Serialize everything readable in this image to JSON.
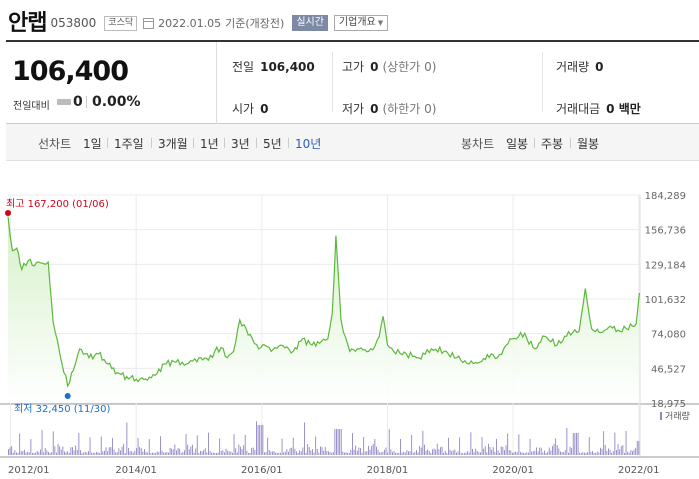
{
  "header": {
    "company_name": "안랩",
    "stock_code": "053800",
    "market": "코스닥",
    "date": "2022.01.05",
    "date_suffix": "기준(개장전)",
    "realtime_label": "실시간",
    "company_info_label": "기업개요"
  },
  "quote": {
    "price": "106,400",
    "diff_label": "전일대비",
    "diff_value": "0",
    "diff_percent": "0.00%",
    "prev_close_label": "전일",
    "prev_close": "106,400",
    "high_label": "고가",
    "high": "0",
    "high_limit": "(상한가 0)",
    "volume_label": "거래량",
    "volume": "0",
    "open_label": "시가",
    "open": "0",
    "low_label": "저가",
    "low": "0",
    "low_limit": "(하한가 0)",
    "amount_label": "거래대금",
    "amount": "0 백만"
  },
  "periods": {
    "line_chart_label": "선차트",
    "line_options": [
      "1일",
      "1주일",
      "3개월",
      "1년",
      "3년",
      "5년",
      "10년"
    ],
    "active": "10년",
    "candle_chart_label": "봉차트",
    "candle_options": [
      "일봉",
      "주봉",
      "월봉"
    ]
  },
  "colors": {
    "line": "#5cb83a",
    "area_top": "#d2f0c6",
    "volume": "#9384c5",
    "high_marker": "#d0021b",
    "low_marker": "#1a6fcc",
    "active_period": "#2c5db8"
  },
  "chart_data": {
    "type": "area",
    "y_ticks": [
      "184,289",
      "156,736",
      "129,184",
      "101,632",
      "74,080",
      "46,527",
      "18,975"
    ],
    "x_ticks": [
      "2012/01",
      "2014/01",
      "2016/01",
      "2018/01",
      "2020/01",
      "2022/01"
    ],
    "ylim": [
      18975,
      184289
    ],
    "xlim": [
      2011.96,
      2022.02
    ],
    "high_annotation": "최고 167,200 (01/06)",
    "low_annotation": "최저 32,450 (11/30)",
    "volume_legend": "거래량",
    "series": [
      {
        "x": [
          2011.96,
          2012.03,
          2012.1,
          2012.18,
          2012.28,
          2012.38,
          2012.45,
          2012.52,
          2012.6,
          2012.68,
          2012.75,
          2012.82,
          2012.91,
          2013.0,
          2013.1,
          2013.25,
          2013.4,
          2013.55,
          2013.7,
          2013.85,
          2014.0,
          2014.15,
          2014.3,
          2014.45,
          2014.6,
          2014.8,
          2015.0,
          2015.15,
          2015.25,
          2015.35,
          2015.45,
          2015.55,
          2015.65,
          2015.75,
          2015.85,
          2015.95,
          2016.05,
          2016.15,
          2016.3,
          2016.5,
          2016.65,
          2016.8,
          2016.95,
          2017.05,
          2017.12,
          2017.18,
          2017.22,
          2017.26,
          2017.3,
          2017.4,
          2017.55,
          2017.7,
          2017.8,
          2017.87,
          2017.93,
          2018.0,
          2018.1,
          2018.3,
          2018.5,
          2018.7,
          2018.9,
          2019.1,
          2019.3,
          2019.5,
          2019.65,
          2019.75,
          2019.85,
          2019.95,
          2020.05,
          2020.12,
          2020.22,
          2020.35,
          2020.5,
          2020.7,
          2020.85,
          2020.95,
          2021.05,
          2021.15,
          2021.25,
          2021.4,
          2021.55,
          2021.7,
          2021.8,
          2021.9,
          2021.96,
          2022.01
        ],
        "values": [
          167200,
          140000,
          142000,
          125000,
          132000,
          128000,
          131000,
          130000,
          131000,
          83000,
          68000,
          50000,
          32450,
          45000,
          62000,
          55000,
          58000,
          50000,
          43000,
          40000,
          38000,
          38000,
          41000,
          50000,
          52000,
          50000,
          55000,
          53000,
          60000,
          63000,
          55000,
          60000,
          85000,
          78000,
          70000,
          62000,
          65000,
          60000,
          65000,
          60000,
          70000,
          65000,
          68000,
          70000,
          90000,
          152000,
          120000,
          85000,
          75000,
          60000,
          62000,
          60000,
          64000,
          72000,
          88000,
          65000,
          60000,
          58000,
          55000,
          62000,
          60000,
          55000,
          50000,
          52000,
          58000,
          55000,
          62000,
          70000,
          70000,
          75000,
          70000,
          62000,
          72000,
          65000,
          72000,
          75000,
          76000,
          110000,
          78000,
          75000,
          80000,
          76000,
          78000,
          80000,
          82000,
          106400
        ]
      }
    ]
  }
}
